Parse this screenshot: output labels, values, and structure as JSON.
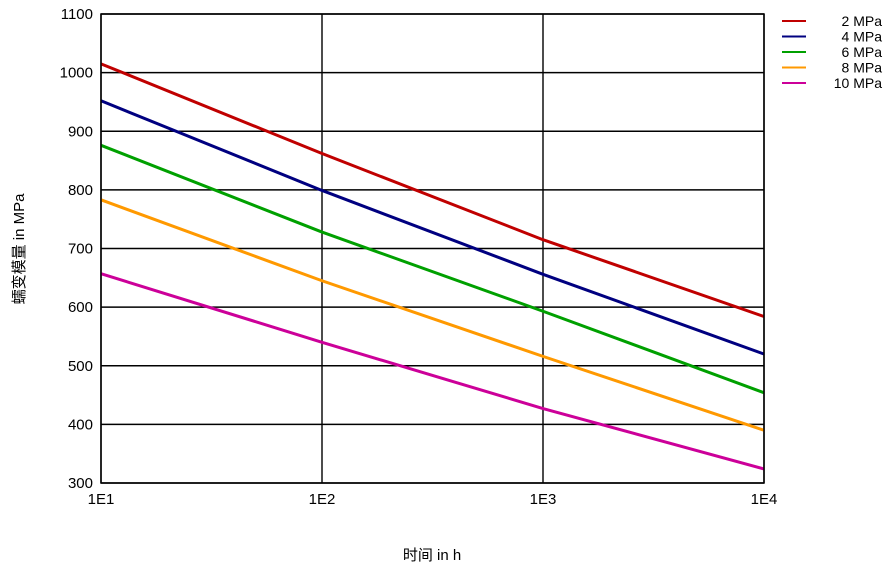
{
  "chart_data": {
    "type": "line",
    "title": "",
    "xlabel": "时间 in h",
    "ylabel": "蠕变模量 in MPa",
    "x_scale": "log",
    "xlim": [
      10,
      10000
    ],
    "ylim": [
      300,
      1100
    ],
    "grid": true,
    "legend_position": "top-right",
    "x_ticks": [
      {
        "value": 10,
        "label": "1E1"
      },
      {
        "value": 100,
        "label": "1E2"
      },
      {
        "value": 1000,
        "label": "1E3"
      },
      {
        "value": 10000,
        "label": "1E4"
      }
    ],
    "y_ticks": [
      {
        "value": 300,
        "label": "300"
      },
      {
        "value": 400,
        "label": "400"
      },
      {
        "value": 500,
        "label": "500"
      },
      {
        "value": 600,
        "label": "600"
      },
      {
        "value": 700,
        "label": "700"
      },
      {
        "value": 800,
        "label": "800"
      },
      {
        "value": 900,
        "label": "900"
      },
      {
        "value": 1000,
        "label": "1000"
      },
      {
        "value": 1100,
        "label": "1100"
      }
    ],
    "series": [
      {
        "name": "2 MPa",
        "color": "#c00000",
        "points": [
          {
            "x": 10,
            "y": 1015
          },
          {
            "x": 100,
            "y": 862
          },
          {
            "x": 1000,
            "y": 715
          },
          {
            "x": 10000,
            "y": 584
          }
        ]
      },
      {
        "name": "4 MPa",
        "color": "#000080",
        "points": [
          {
            "x": 10,
            "y": 952
          },
          {
            "x": 100,
            "y": 799
          },
          {
            "x": 1000,
            "y": 656
          },
          {
            "x": 10000,
            "y": 520
          }
        ]
      },
      {
        "name": "6 MPa",
        "color": "#00a000",
        "points": [
          {
            "x": 10,
            "y": 876
          },
          {
            "x": 100,
            "y": 728
          },
          {
            "x": 1000,
            "y": 593
          },
          {
            "x": 10000,
            "y": 454
          }
        ]
      },
      {
        "name": "8 MPa",
        "color": "#ff9900",
        "points": [
          {
            "x": 10,
            "y": 783
          },
          {
            "x": 100,
            "y": 645
          },
          {
            "x": 1000,
            "y": 516
          },
          {
            "x": 10000,
            "y": 390
          }
        ]
      },
      {
        "name": "10 MPa",
        "color": "#cc0099",
        "points": [
          {
            "x": 10,
            "y": 657
          },
          {
            "x": 100,
            "y": 540
          },
          {
            "x": 1000,
            "y": 427
          },
          {
            "x": 10000,
            "y": 324
          }
        ]
      }
    ]
  }
}
